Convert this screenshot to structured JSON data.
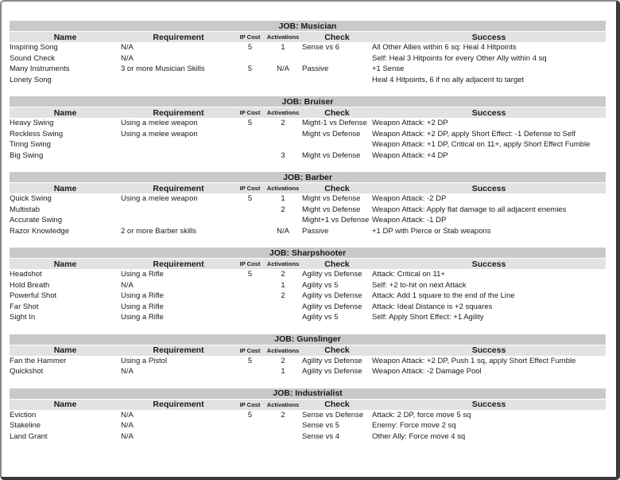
{
  "page": {
    "columns": [
      "Name",
      "Requirement",
      "IP Cost",
      "Activations",
      "Check",
      "Success"
    ],
    "tables": [
      {
        "title": "JOB: Musician",
        "rows": [
          [
            "Inspiring Song",
            "N/A",
            "5",
            "1",
            "Sense vs 6",
            "All Other Allies within 6 sq: Heal 4 Hitpoints"
          ],
          [
            "Sound Check",
            "N/A",
            "",
            "",
            "",
            "Self: Heal 3 Hitpoints for every Other Ally within 4 sq"
          ],
          [
            "Many Instruments",
            "3 or more Musician Skills",
            "5",
            "N/A",
            "Passive",
            "+1 Sense"
          ],
          [
            "Lonely Song",
            "",
            "",
            "",
            "",
            "Heal 4 Hitpoints, 6 if no ally adjacent to target"
          ]
        ]
      },
      {
        "title": "JOB: Bruiser",
        "rows": [
          [
            "Heavy Swing",
            "Using a melee weapon",
            "5",
            "2",
            "Might-1 vs Defense",
            "Weapon Attack: +2 DP"
          ],
          [
            "Reckless Swing",
            "Using a melee weapon",
            "",
            "",
            "Might vs Defense",
            "Weapon Attack: +2 DP, apply Short Effect: -1 Defense to Self"
          ],
          [
            "Tiring Swing",
            "",
            "",
            "",
            "",
            "Weapon Attack: +1 DP, Critical on 11+, apply Short Effect Fumble"
          ],
          [
            "Big Swing",
            "",
            "",
            "3",
            "Might vs Defense",
            "Weapon Attack: +4 DP"
          ]
        ]
      },
      {
        "title": "JOB: Barber",
        "rows": [
          [
            "Quick Swing",
            "Using a melee weapon",
            "5",
            "1",
            "Might vs Defense",
            "Weapon Attack: -2 DP"
          ],
          [
            "Multistab",
            "",
            "",
            "2",
            "Might vs Defense",
            "Weapon Attack: Apply flat damage to all adjacent enemies"
          ],
          [
            "Accurate Swing",
            "",
            "",
            "",
            "Might+1 vs Defense",
            "Weapon Attack: -1 DP"
          ],
          [
            "Razor Knowledge",
            "2 or more Barber skills",
            "",
            "N/A",
            "Passive",
            "+1 DP with Pierce or Stab weapons"
          ]
        ]
      },
      {
        "title": "JOB: Sharpshooter",
        "rows": [
          [
            "Headshot",
            "Using a Rifle",
            "5",
            "2",
            "Agility vs Defense",
            "Attack: Critical on 11+"
          ],
          [
            "Hold Breath",
            "N/A",
            "",
            "1",
            "Agility vs 5",
            "Self: +2 to-hit on next Attack"
          ],
          [
            "Powerful Shot",
            "Using a Rifle",
            "",
            "2",
            "Agility vs Defense",
            "Attack: Add 1 square to the end of the Line"
          ],
          [
            "Far Shot",
            "Using a Rifle",
            "",
            "",
            "Agility vs Defense",
            "Attack: Ideal Distance is +2 squares"
          ],
          [
            "Sight In",
            "Using a Rifle",
            "",
            "",
            "Agility vs 5",
            "Self: Apply Short Effect: +1 Agility"
          ]
        ]
      },
      {
        "title": "JOB: Gunslinger",
        "rows": [
          [
            "Fan the Hammer",
            "Using a Pistol",
            "5",
            "2",
            "Agility vs Defense",
            "Weapon Attack: +2 DP, Push 1 sq, apply Short Effect Fumble"
          ],
          [
            "Quickshot",
            "N/A",
            "",
            "1",
            "Agility vs Defense",
            "Weapon Attack: -2 Damage Pool"
          ]
        ]
      },
      {
        "title": "JOB: Industrialist",
        "rows": [
          [
            "Eviction",
            "N/A",
            "5",
            "2",
            "Sense vs Defense",
            "Attack: 2 DP, force move 5 sq"
          ],
          [
            "Stakeline",
            "N/A",
            "",
            "",
            "Sense vs 5",
            "Enemy: Force move 2 sq"
          ],
          [
            "Land Grant",
            "N/A",
            "",
            "",
            "Sense vs 4",
            "Other Ally: Force move 4 sq"
          ]
        ]
      }
    ]
  },
  "colors": {
    "title_band": "#c9c9c9",
    "header_band": "#e2e2e2",
    "text": "#1a1a1a",
    "frame_light": "#868686",
    "frame_dark": "#3a3a3a"
  }
}
